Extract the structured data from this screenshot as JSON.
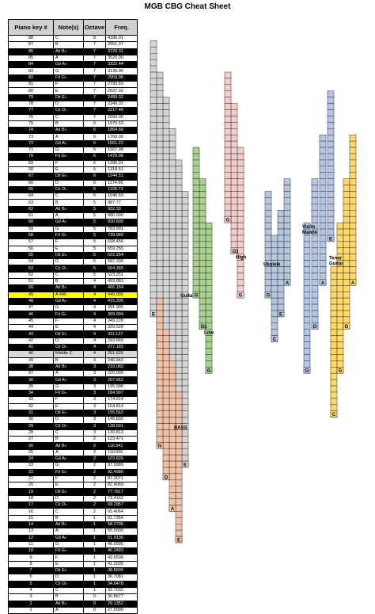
{
  "title": "MGB CBG Cheat Sheet",
  "table": {
    "headers": [
      "Piano key #",
      "Note(s)",
      "Octave",
      "Freq."
    ],
    "rows": [
      {
        "key": "88",
        "note": "C",
        "octave": "8",
        "freq": "4186.01",
        "black": false
      },
      {
        "key": "87",
        "note": "B",
        "octave": "7",
        "freq": "3951.07",
        "black": false
      },
      {
        "key": "86",
        "note": "A♯ B♭",
        "octave": "7",
        "freq": "3729.31",
        "black": true
      },
      {
        "key": "85",
        "note": "A",
        "octave": "7",
        "freq": "3520.00",
        "black": false
      },
      {
        "key": "84",
        "note": "G♯ A♭",
        "octave": "7",
        "freq": "3322.44",
        "black": true
      },
      {
        "key": "83",
        "note": "G",
        "octave": "7",
        "freq": "3135.96",
        "black": false
      },
      {
        "key": "82",
        "note": "F♯ G♭",
        "octave": "7",
        "freq": "2959.96",
        "black": true
      },
      {
        "key": "81",
        "note": "F",
        "octave": "7",
        "freq": "2793.83",
        "black": false
      },
      {
        "key": "80",
        "note": "E",
        "octave": "7",
        "freq": "2637.02",
        "black": false
      },
      {
        "key": "79",
        "note": "D♯ E♭",
        "octave": "7",
        "freq": "2489.02",
        "black": true
      },
      {
        "key": "78",
        "note": "D",
        "octave": "7",
        "freq": "2349.32",
        "black": false
      },
      {
        "key": "77",
        "note": "C♯ D♭",
        "octave": "7",
        "freq": "2217.46",
        "black": true
      },
      {
        "key": "76",
        "note": "C",
        "octave": "7",
        "freq": "2093.00",
        "black": false
      },
      {
        "key": "75",
        "note": "B",
        "octave": "6",
        "freq": "1975.53",
        "black": false
      },
      {
        "key": "74",
        "note": "A♯ B♭",
        "octave": "6",
        "freq": "1864.66",
        "black": true
      },
      {
        "key": "73",
        "note": "A",
        "octave": "6",
        "freq": "1760.00",
        "black": false
      },
      {
        "key": "72",
        "note": "G♯ A♭",
        "octave": "6",
        "freq": "1661.22",
        "black": true
      },
      {
        "key": "71",
        "note": "G",
        "octave": "6",
        "freq": "1567.98",
        "black": false
      },
      {
        "key": "70",
        "note": "F♯ G♭",
        "octave": "6",
        "freq": "1479.98",
        "black": true
      },
      {
        "key": "69",
        "note": "F",
        "octave": "6",
        "freq": "1396.91",
        "black": false
      },
      {
        "key": "68",
        "note": "E",
        "octave": "6",
        "freq": "1318.51",
        "black": false
      },
      {
        "key": "67",
        "note": "D♯ E♭",
        "octave": "6",
        "freq": "1244.51",
        "black": true
      },
      {
        "key": "66",
        "note": "D",
        "octave": "6",
        "freq": "1174.66",
        "black": false
      },
      {
        "key": "65",
        "note": "C♯ D♭",
        "octave": "6",
        "freq": "1108.73",
        "black": true
      },
      {
        "key": "64",
        "note": "C",
        "octave": "6",
        "freq": "1046.50",
        "black": false
      },
      {
        "key": "63",
        "note": "B",
        "octave": "5",
        "freq": "987.77",
        "black": false
      },
      {
        "key": "62",
        "note": "A♯ B♭",
        "octave": "5",
        "freq": "932.33",
        "black": true
      },
      {
        "key": "61",
        "note": "A",
        "octave": "5",
        "freq": "880.000",
        "black": false
      },
      {
        "key": "60",
        "note": "G♯ A♭",
        "octave": "5",
        "freq": "830.609",
        "black": true
      },
      {
        "key": "59",
        "note": "G",
        "octave": "5",
        "freq": "783.991",
        "black": false
      },
      {
        "key": "58",
        "note": "F♯ G♭",
        "octave": "5",
        "freq": "739.989",
        "black": true
      },
      {
        "key": "57",
        "note": "F",
        "octave": "5",
        "freq": "698.456",
        "black": false
      },
      {
        "key": "56",
        "note": "E",
        "octave": "5",
        "freq": "659.255",
        "black": false
      },
      {
        "key": "55",
        "note": "D♯ E♭",
        "octave": "5",
        "freq": "622.254",
        "black": true
      },
      {
        "key": "54",
        "note": "D",
        "octave": "5",
        "freq": "587.330",
        "black": false
      },
      {
        "key": "53",
        "note": "C♯ D♭",
        "octave": "5",
        "freq": "554.365",
        "black": true
      },
      {
        "key": "52",
        "note": "C",
        "octave": "5",
        "freq": "523.251",
        "black": false
      },
      {
        "key": "51",
        "note": "B",
        "octave": "4",
        "freq": "493.883",
        "black": false
      },
      {
        "key": "50",
        "note": "A♯ B♭",
        "octave": "4",
        "freq": "466.164",
        "black": true
      },
      {
        "key": "49",
        "note": "A 440",
        "octave": "4",
        "freq": "440.000",
        "black": false,
        "highlight": true
      },
      {
        "key": "48",
        "note": "G♯ A♭",
        "octave": "4",
        "freq": "415.305",
        "black": true
      },
      {
        "key": "47",
        "note": "G",
        "octave": "4",
        "freq": "391.995",
        "black": false
      },
      {
        "key": "46",
        "note": "F♯ G♭",
        "octave": "4",
        "freq": "369.994",
        "black": true
      },
      {
        "key": "45",
        "note": "F",
        "octave": "4",
        "freq": "349.228",
        "black": false
      },
      {
        "key": "44",
        "note": "E",
        "octave": "4",
        "freq": "329.628",
        "black": false
      },
      {
        "key": "43",
        "note": "D♯ E♭",
        "octave": "4",
        "freq": "311.127",
        "black": true
      },
      {
        "key": "42",
        "note": "D",
        "octave": "4",
        "freq": "293.665",
        "black": false
      },
      {
        "key": "41",
        "note": "C♯ D♭",
        "octave": "4",
        "freq": "277.183",
        "black": true
      },
      {
        "key": "40",
        "note": "Middle C",
        "octave": "4",
        "freq": "261.626",
        "black": false,
        "middle": true
      },
      {
        "key": "39",
        "note": "B",
        "octave": "3",
        "freq": "246.942",
        "black": false
      },
      {
        "key": "38",
        "note": "A♯ B♭",
        "octave": "3",
        "freq": "233.082",
        "black": true
      },
      {
        "key": "37",
        "note": "A",
        "octave": "3",
        "freq": "220.000",
        "black": false
      },
      {
        "key": "36",
        "note": "G♯ A♭",
        "octave": "3",
        "freq": "207.652",
        "black": true
      },
      {
        "key": "35",
        "note": "G",
        "octave": "3",
        "freq": "195.998",
        "black": false
      },
      {
        "key": "34",
        "note": "F♯ G♭",
        "octave": "3",
        "freq": "184.997",
        "black": true
      },
      {
        "key": "33",
        "note": "F",
        "octave": "3",
        "freq": "174.614",
        "black": false
      },
      {
        "key": "32",
        "note": "E",
        "octave": "3",
        "freq": "164.814",
        "black": false
      },
      {
        "key": "31",
        "note": "D♯ E♭",
        "octave": "3",
        "freq": "155.563",
        "black": true
      },
      {
        "key": "30",
        "note": "D",
        "octave": "3",
        "freq": "146.832",
        "black": false
      },
      {
        "key": "29",
        "note": "C♯ D♭",
        "octave": "3",
        "freq": "138.591",
        "black": true
      },
      {
        "key": "28",
        "note": "C",
        "octave": "3",
        "freq": "130.813",
        "black": false
      },
      {
        "key": "27",
        "note": "B",
        "octave": "2",
        "freq": "123.471",
        "black": false
      },
      {
        "key": "26",
        "note": "A♯ B♭",
        "octave": "2",
        "freq": "116.541",
        "black": true
      },
      {
        "key": "25",
        "note": "A",
        "octave": "2",
        "freq": "110.000",
        "black": false
      },
      {
        "key": "24",
        "note": "G♯ A♭",
        "octave": "2",
        "freq": "103.826",
        "black": true
      },
      {
        "key": "23",
        "note": "G",
        "octave": "2",
        "freq": "97.9989",
        "black": false
      },
      {
        "key": "22",
        "note": "F♯ G♭",
        "octave": "2",
        "freq": "92.4986",
        "black": true
      },
      {
        "key": "21",
        "note": "F",
        "octave": "2",
        "freq": "87.3071",
        "black": false
      },
      {
        "key": "20",
        "note": "E",
        "octave": "2",
        "freq": "82.4069",
        "black": false
      },
      {
        "key": "19",
        "note": "D♯ E♭",
        "octave": "2",
        "freq": "77.7817",
        "black": true
      },
      {
        "key": "18",
        "note": "D",
        "octave": "2",
        "freq": "73.4162",
        "black": false
      },
      {
        "key": "17",
        "note": "C♯ D♭",
        "octave": "2",
        "freq": "69.2957",
        "black": true
      },
      {
        "key": "16",
        "note": "C",
        "octave": "2",
        "freq": "65.4064",
        "black": false
      },
      {
        "key": "15",
        "note": "B",
        "octave": "1",
        "freq": "61.7354",
        "black": false
      },
      {
        "key": "14",
        "note": "A♯ B♭",
        "octave": "1",
        "freq": "58.2705",
        "black": true
      },
      {
        "key": "13",
        "note": "A",
        "octave": "1",
        "freq": "55.0000",
        "black": false
      },
      {
        "key": "12",
        "note": "G♯ A♭",
        "octave": "1",
        "freq": "51.9130",
        "black": true
      },
      {
        "key": "11",
        "note": "G",
        "octave": "1",
        "freq": "48.9995",
        "black": false
      },
      {
        "key": "10",
        "note": "F♯ G♭",
        "octave": "1",
        "freq": "46.2493",
        "black": true
      },
      {
        "key": "9",
        "note": "F",
        "octave": "1",
        "freq": "43.6536",
        "black": false
      },
      {
        "key": "8",
        "note": "E",
        "octave": "1",
        "freq": "41.2035",
        "black": false
      },
      {
        "key": "7",
        "note": "D♯ E♭",
        "octave": "1",
        "freq": "38.8909",
        "black": true
      },
      {
        "key": "6",
        "note": "D",
        "octave": "1",
        "freq": "36.7081",
        "black": false
      },
      {
        "key": "5",
        "note": "C♯ D♭",
        "octave": "1",
        "freq": "34.6478",
        "black": true
      },
      {
        "key": "4",
        "note": "C",
        "octave": "1",
        "freq": "32.7032",
        "black": false
      },
      {
        "key": "3",
        "note": "B",
        "octave": "0",
        "freq": "30.8677",
        "black": false
      },
      {
        "key": "2",
        "note": "A♯ B♭",
        "octave": "0",
        "freq": "29.1352",
        "black": true
      },
      {
        "key": "1",
        "note": "A",
        "octave": "0",
        "freq": "27.5000",
        "black": false
      }
    ]
  },
  "instruments": [
    {
      "name": "Guitar",
      "color": "#d4d4d4",
      "label_key": "47",
      "strings": [
        {
          "open": "E",
          "low": "20",
          "high": "63"
        },
        {
          "open": "A",
          "low": "25",
          "high": "68"
        },
        {
          "open": "D",
          "low": "30",
          "high": "73"
        },
        {
          "open": "G",
          "low": "35",
          "high": "78"
        },
        {
          "open": "B",
          "low": "39",
          "high": "82"
        },
        {
          "open": "E",
          "low": "44",
          "high": "87"
        }
      ]
    },
    {
      "name": "BASS",
      "color": "#f2c1a6",
      "label_key": "26",
      "strings": [
        {
          "open": "E",
          "low": "8",
          "high": "31"
        },
        {
          "open": "A",
          "low": "13",
          "high": "36"
        },
        {
          "open": "D",
          "low": "18",
          "high": "41"
        },
        {
          "open": "G",
          "low": "23",
          "high": "46"
        }
      ]
    },
    {
      "name": "3 Low",
      "color": "#a9d18e",
      "label_key": "42",
      "strings": [
        {
          "open": "G",
          "low": "35",
          "high": "58"
        },
        {
          "open": "D",
          "low": "42",
          "high": "65"
        },
        {
          "open": "G",
          "low": "47",
          "high": "70"
        }
      ]
    },
    {
      "name": "3 High",
      "color": "#f4cccc",
      "label_key": "54",
      "strings": [
        {
          "open": "G",
          "low": "47",
          "high": "70"
        },
        {
          "open": "D",
          "low": "54",
          "high": "77"
        },
        {
          "open": "G",
          "low": "59",
          "high": "82"
        }
      ]
    },
    {
      "name": "Ukulele",
      "color": "#b4c7dc",
      "label_key": "52",
      "strings": [
        {
          "open": "G",
          "low": "47",
          "high": "63"
        },
        {
          "open": "C",
          "low": "40",
          "high": "56"
        },
        {
          "open": "E",
          "low": "44",
          "high": "60"
        },
        {
          "open": "A",
          "low": "49",
          "high": "65"
        }
      ]
    },
    {
      "name": "Violin Mando",
      "color": "#b4c6e7",
      "label_key": "58",
      "strings": [
        {
          "open": "G",
          "low": "35",
          "high": "58"
        },
        {
          "open": "D",
          "low": "42",
          "high": "65"
        },
        {
          "open": "A",
          "low": "49",
          "high": "72"
        },
        {
          "open": "E",
          "low": "56",
          "high": "79"
        }
      ]
    },
    {
      "name": "Tenor Guitar",
      "color": "#ffd966",
      "label_key": "53",
      "strings": [
        {
          "open": "C",
          "low": "28",
          "high": "51"
        },
        {
          "open": "G",
          "low": "35",
          "high": "58"
        },
        {
          "open": "D",
          "low": "42",
          "high": "65"
        },
        {
          "open": "A",
          "low": "49",
          "high": "72"
        }
      ]
    }
  ]
}
